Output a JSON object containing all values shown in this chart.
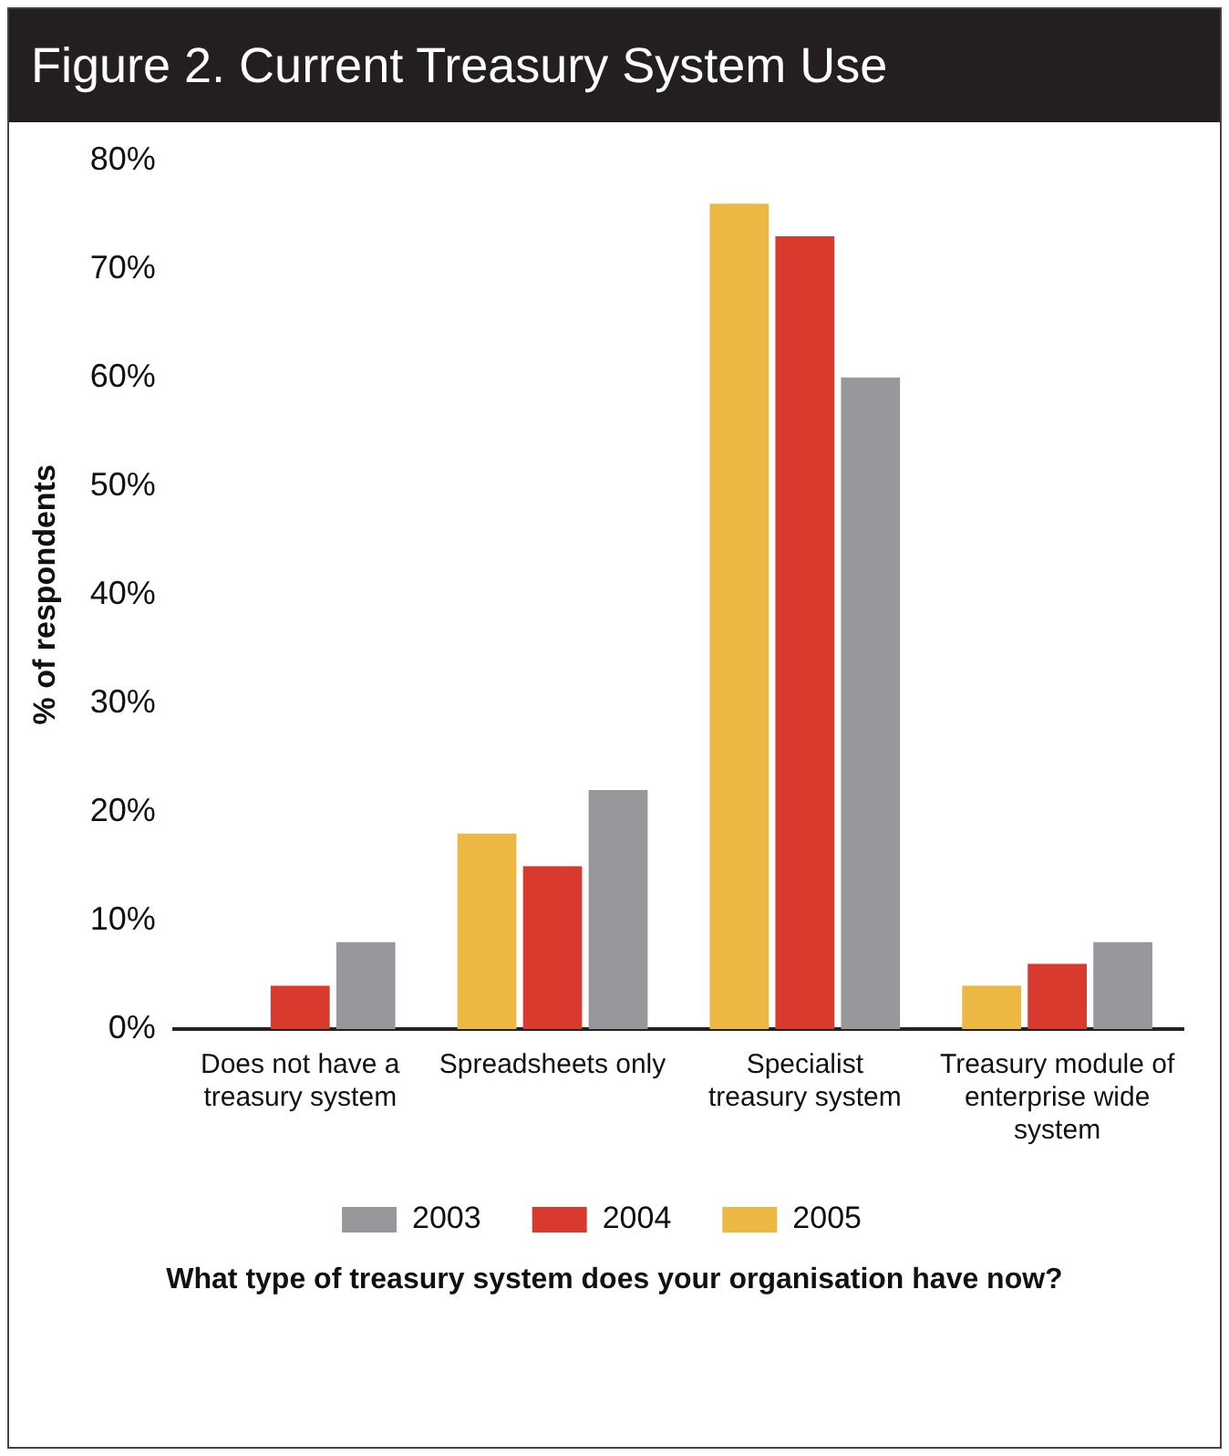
{
  "chart_data": {
    "type": "bar",
    "title": "Figure 2. Current Treasury System Use",
    "ylabel": "% of respondents",
    "xlabel": "What type of treasury system does your organisation have now?",
    "categories": [
      "Does not have a treasury system",
      "Spreadsheets only",
      "Specialist treasury system",
      "Treasury module of enterprise wide system"
    ],
    "series": [
      {
        "name": "2005",
        "color": "#ecb843",
        "values": [
          0,
          18,
          76,
          4
        ]
      },
      {
        "name": "2004",
        "color": "#d93a2e",
        "values": [
          4,
          15,
          73,
          6
        ]
      },
      {
        "name": "2003",
        "color": "#98989c",
        "values": [
          8,
          22,
          60,
          8
        ]
      }
    ],
    "ylim": [
      0,
      80
    ],
    "yticks": [
      {
        "value": 0,
        "label": "0%"
      },
      {
        "value": 10,
        "label": "10%"
      },
      {
        "value": 20,
        "label": "20%"
      },
      {
        "value": 30,
        "label": "30%"
      },
      {
        "value": 40,
        "label": "40%"
      },
      {
        "value": 50,
        "label": "50%"
      },
      {
        "value": 60,
        "label": "60%"
      },
      {
        "value": 70,
        "label": "70%"
      },
      {
        "value": 80,
        "label": "80%"
      }
    ],
    "legend": "bottom"
  }
}
